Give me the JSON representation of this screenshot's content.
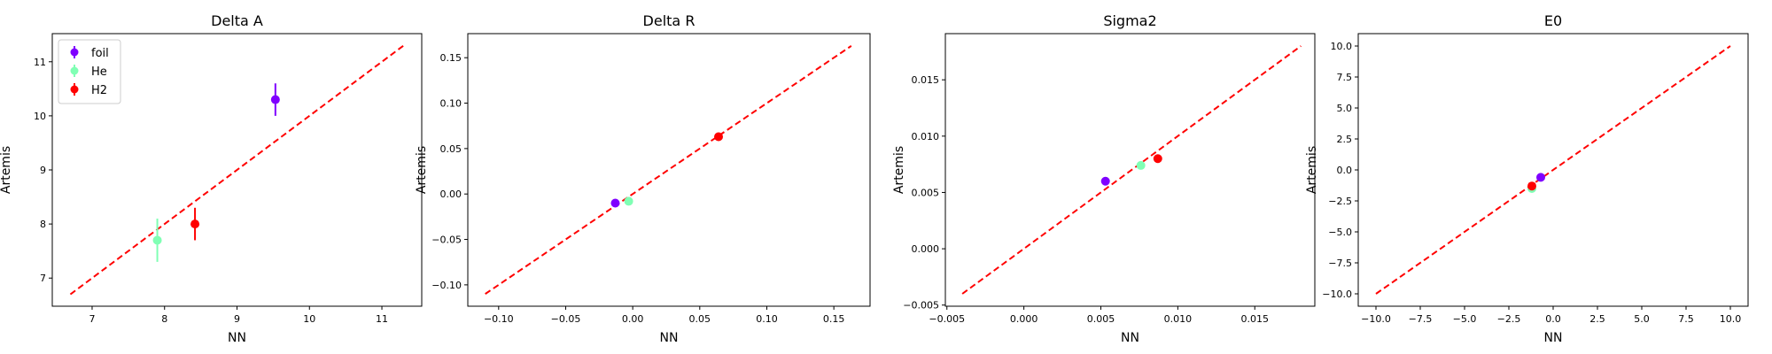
{
  "colors": {
    "foil": "#7f00ff",
    "He": "#80ffb4",
    "H2": "#ff0000",
    "diagonal": "#ff0000"
  },
  "legend": {
    "placement": "top-left",
    "entries": [
      "foil",
      "He",
      "H2"
    ]
  },
  "chart_data": [
    {
      "type": "scatter",
      "title": "Delta A",
      "xlabel": "NN",
      "ylabel": "Artemis",
      "xlim": [
        6.45,
        11.55
      ],
      "ylim": [
        6.48,
        11.52
      ],
      "xticks": [
        7,
        8,
        9,
        10,
        11
      ],
      "xtick_labels": [
        "7",
        "8",
        "9",
        "10",
        "11"
      ],
      "yticks": [
        7,
        8,
        9,
        10,
        11
      ],
      "ytick_labels": [
        "7",
        "8",
        "9",
        "10",
        "11"
      ],
      "diagonal": [
        6.7,
        11.3
      ],
      "grid": false,
      "series": [
        {
          "name": "foil",
          "x": 9.53,
          "y": 10.3,
          "yerr": 0.3
        },
        {
          "name": "He",
          "x": 7.9,
          "y": 7.7,
          "yerr": 0.4
        },
        {
          "name": "H2",
          "x": 8.42,
          "y": 8.0,
          "yerr": 0.3
        }
      ]
    },
    {
      "type": "scatter",
      "title": "Delta R",
      "xlabel": "NN",
      "ylabel": "Artemis",
      "xlim": [
        -0.123,
        0.177
      ],
      "ylim": [
        -0.1235,
        0.1765
      ],
      "xticks": [
        -0.1,
        -0.05,
        0,
        0.05,
        0.1,
        0.15
      ],
      "xtick_labels": [
        "−0.10",
        "−0.05",
        "0.00",
        "0.05",
        "0.10",
        "0.15"
      ],
      "yticks": [
        -0.1,
        -0.05,
        0,
        0.05,
        0.1,
        0.15
      ],
      "ytick_labels": [
        "−0.10",
        "−0.05",
        "0.00",
        "0.05",
        "0.10",
        "0.15"
      ],
      "diagonal": [
        -0.11,
        0.163
      ],
      "grid": false,
      "series": [
        {
          "name": "foil",
          "x": -0.013,
          "y": -0.01,
          "yerr": 0.002
        },
        {
          "name": "He",
          "x": -0.003,
          "y": -0.008,
          "yerr": 0.002
        },
        {
          "name": "H2",
          "x": 0.064,
          "y": 0.063,
          "yerr": 0.002
        }
      ]
    },
    {
      "type": "scatter",
      "title": "Sigma2",
      "xlabel": "NN",
      "ylabel": "Artemis",
      "xlim": [
        -0.0051,
        0.0189
      ],
      "ylim": [
        -0.0051,
        0.0191
      ],
      "xticks": [
        -0.005,
        0,
        0.005,
        0.01,
        0.015
      ],
      "xtick_labels": [
        "−0.005",
        "0.000",
        "0.005",
        "0.010",
        "0.015"
      ],
      "yticks": [
        -0.005,
        0,
        0.005,
        0.01,
        0.015
      ],
      "ytick_labels": [
        "−0.005",
        "0.000",
        "0.005",
        "0.010",
        "0.015"
      ],
      "diagonal": [
        -0.004,
        0.018
      ],
      "grid": false,
      "series": [
        {
          "name": "foil",
          "x": 0.0053,
          "y": 0.006,
          "yerr": 0.0003
        },
        {
          "name": "He",
          "x": 0.0076,
          "y": 0.0074,
          "yerr": 0.0003
        },
        {
          "name": "H2",
          "x": 0.0087,
          "y": 0.008,
          "yerr": 0.0003
        }
      ]
    },
    {
      "type": "scatter",
      "title": "E0",
      "xlabel": "NN",
      "ylabel": "Artemis",
      "xlim": [
        -11,
        11
      ],
      "ylim": [
        -11,
        11
      ],
      "xticks": [
        -10,
        -7.5,
        -5,
        -2.5,
        0,
        2.5,
        5,
        7.5,
        10
      ],
      "xtick_labels": [
        "−10.0",
        "−7.5",
        "−5.0",
        "−2.5",
        "0.0",
        "2.5",
        "5.0",
        "7.5",
        "10.0"
      ],
      "yticks": [
        -10,
        -7.5,
        -5,
        -2.5,
        0,
        2.5,
        5,
        7.5,
        10
      ],
      "ytick_labels": [
        "−10.0",
        "−7.5",
        "−5.0",
        "−2.5",
        "0.0",
        "2.5",
        "5.0",
        "7.5",
        "10.0"
      ],
      "diagonal": [
        -10,
        10
      ],
      "grid": false,
      "series": [
        {
          "name": "foil",
          "x": -0.7,
          "y": -0.6,
          "yerr": 0.3
        },
        {
          "name": "He",
          "x": -1.2,
          "y": -1.5,
          "yerr": 0.3
        },
        {
          "name": "H2",
          "x": -1.2,
          "y": -1.3,
          "yerr": 0.3
        }
      ]
    }
  ]
}
